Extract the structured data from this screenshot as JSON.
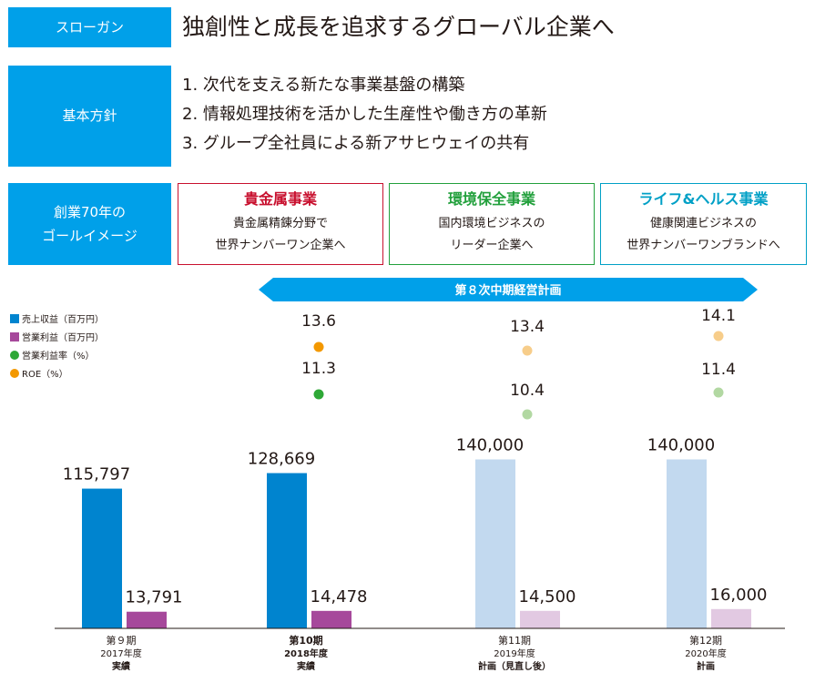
{
  "slogan": {
    "label": "スローガン",
    "text": "独創性と成長を追求するグローバル企業へ"
  },
  "policy": {
    "label": "基本方針",
    "items": [
      "1. 次代を支える新たな事業基盤の構築",
      "2. 情報処理技術を活かした生産性や働き方の革新",
      "3. グループ全社員による新アサヒウェイの共有"
    ]
  },
  "goal": {
    "label_line1": "創業70年の",
    "label_line2": "ゴールイメージ",
    "cards": [
      {
        "title": "貴金属事業",
        "line1": "貴金属精錬分野で",
        "line2": "世界ナンバーワン企業へ",
        "color": "#c8102e"
      },
      {
        "title": "環境保全事業",
        "line1": "国内環境ビジネスの",
        "line2": "リーダー企業へ",
        "color": "#22a03c"
      },
      {
        "title": "ライフ&ヘルス事業",
        "line1": "健康関連ビジネスの",
        "line2": "世界ナンバーワンブランドへ",
        "color": "#00a0c6"
      }
    ]
  },
  "chart_data": {
    "type": "bar",
    "banner": "第８次中期経営計画",
    "legend": [
      {
        "label": "売上収益（百万円）",
        "shape": "square",
        "color": "#0084cf"
      },
      {
        "label": "営業利益（百万円）",
        "shape": "square",
        "color": "#a6489b"
      },
      {
        "label": "営業利益率（%）",
        "shape": "circle",
        "color": "#2ea836"
      },
      {
        "label": "ROE（%）",
        "shape": "circle",
        "color": "#f39800"
      }
    ],
    "categories": [
      {
        "line1": "第９期",
        "line2": "2017年度",
        "line3": "実績",
        "plan": false
      },
      {
        "line1": "第10期",
        "line2": "2018年度",
        "line3": "実績",
        "plan": false
      },
      {
        "line1": "第11期",
        "line2": "2019年度",
        "line3": "計画（見直し後）",
        "plan": true
      },
      {
        "line1": "第12期",
        "line2": "2020年度",
        "line3": "計画",
        "plan": true
      }
    ],
    "series": [
      {
        "name": "売上収益",
        "values": [
          115797,
          128669,
          140000,
          140000
        ],
        "labels": [
          "115,797",
          "128,669",
          "140,000",
          "140,000"
        ],
        "color": "#0084cf",
        "plan_color": "#c2d9ef"
      },
      {
        "name": "営業利益",
        "values": [
          13791,
          14478,
          14500,
          16000
        ],
        "labels": [
          "13,791",
          "14,478",
          "14,500",
          "16,000"
        ],
        "color": "#a6489b",
        "plan_color": "#e2c9e2"
      }
    ],
    "points": [
      {
        "name": "ROE",
        "values": [
          null,
          13.6,
          13.4,
          14.1
        ],
        "labels": [
          "",
          "13.6",
          "13.4",
          "14.1"
        ],
        "color": "#f39800",
        "plan_color": "#f7cd8a"
      },
      {
        "name": "営業利益率",
        "values": [
          null,
          11.3,
          10.4,
          11.4
        ],
        "labels": [
          "",
          "11.3",
          "10.4",
          "11.4"
        ],
        "color": "#2ea836",
        "plan_color": "#b2d8a2"
      }
    ]
  }
}
